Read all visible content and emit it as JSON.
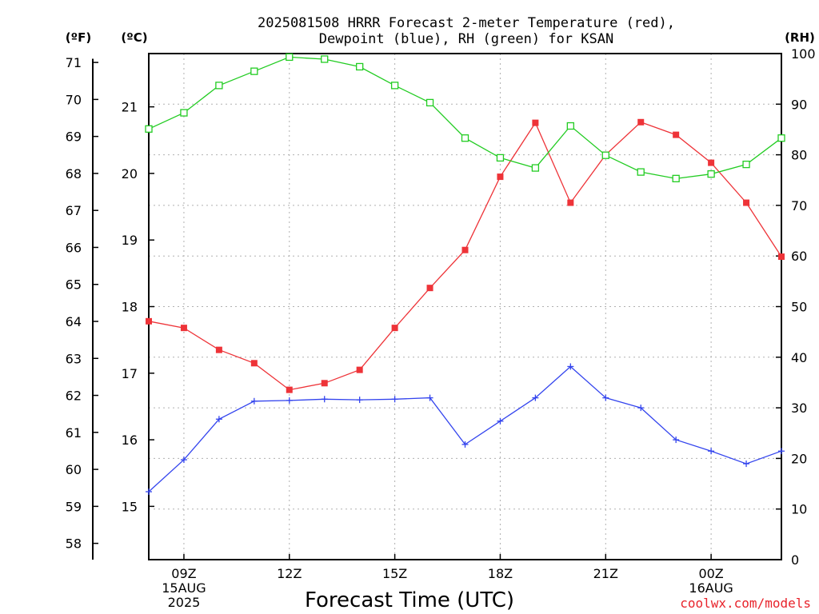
{
  "chart_data": {
    "type": "line",
    "title_lines": [
      "2025081508 HRRR Forecast 2-meter Temperature (red),",
      "Dewpoint (blue), RH (green) for KSAN"
    ],
    "unit_labels": {
      "fahrenheit": "(ºF)",
      "celsius": "(ºC)",
      "rh": "(RH)"
    },
    "xlabel": "Forecast Time (UTC)",
    "credit": "coolwx.com/models",
    "x_hours": [
      8,
      9,
      10,
      11,
      12,
      13,
      14,
      15,
      16,
      17,
      18,
      19,
      20,
      21,
      22,
      23,
      24,
      25,
      26
    ],
    "x_range": [
      8,
      26
    ],
    "x_ticks": [
      {
        "hour": 9,
        "lines": [
          "09Z",
          "15AUG",
          "2025"
        ]
      },
      {
        "hour": 12,
        "lines": [
          "12Z"
        ]
      },
      {
        "hour": 15,
        "lines": [
          "15Z"
        ]
      },
      {
        "hour": 18,
        "lines": [
          "18Z"
        ]
      },
      {
        "hour": 21,
        "lines": [
          "21Z"
        ]
      },
      {
        "hour": 24,
        "lines": [
          "00Z",
          "16AUG"
        ]
      }
    ],
    "celsius_axis": {
      "range": [
        14.2,
        21.8
      ],
      "ticks": [
        "15",
        "16",
        "17",
        "18",
        "19",
        "20",
        "21"
      ]
    },
    "fahrenheit_axis": {
      "range": [
        57.56,
        71.24
      ],
      "ticks": [
        "58",
        "59",
        "60",
        "61",
        "62",
        "63",
        "64",
        "65",
        "66",
        "67",
        "68",
        "69",
        "70",
        "71"
      ]
    },
    "rh_axis": {
      "range": [
        0,
        100
      ],
      "ticks": [
        "0",
        "10",
        "20",
        "30",
        "40",
        "50",
        "60",
        "70",
        "80",
        "90",
        "100"
      ]
    },
    "grid": true,
    "series": [
      {
        "name": "Temperature",
        "axis": "celsius",
        "color": "#ee3338",
        "marker": "filled-square",
        "values": [
          17.78,
          17.68,
          17.35,
          17.15,
          16.75,
          16.85,
          17.05,
          17.68,
          18.28,
          18.85,
          19.95,
          20.76,
          19.56,
          20.28,
          20.77,
          20.58,
          20.16,
          19.56,
          18.75
        ]
      },
      {
        "name": "Dewpoint",
        "axis": "celsius",
        "color": "#3344ee",
        "marker": "plus",
        "values": [
          15.22,
          15.7,
          16.31,
          16.58,
          16.59,
          16.61,
          16.6,
          16.61,
          16.63,
          15.93,
          16.28,
          16.63,
          17.1,
          16.63,
          16.48,
          16.0,
          15.83,
          15.64,
          15.83
        ]
      },
      {
        "name": "RH",
        "axis": "rh",
        "color": "#22cc22",
        "marker": "open-square",
        "values": [
          85.1,
          88.3,
          93.7,
          96.5,
          99.3,
          98.9,
          97.4,
          93.7,
          90.3,
          83.3,
          79.4,
          77.4,
          85.7,
          79.9,
          76.6,
          75.3,
          76.2,
          78.1,
          83.3
        ]
      }
    ]
  }
}
